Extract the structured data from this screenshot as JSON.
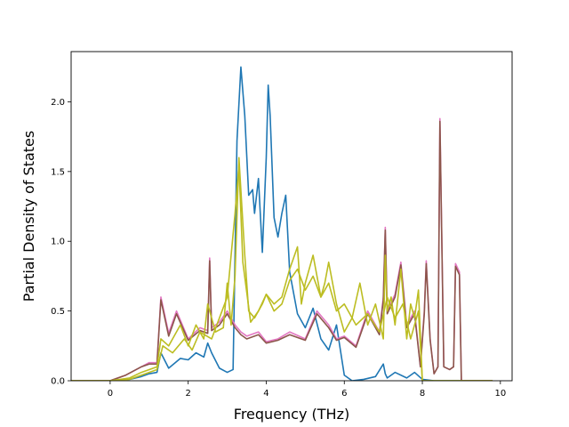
{
  "chart_data": {
    "type": "line",
    "title": "",
    "xlabel": "Frequency (THz)",
    "ylabel": "Partial Density of States",
    "xlim": [
      -1.0,
      10.3
    ],
    "ylim": [
      0.0,
      2.36
    ],
    "xticks": [
      0,
      2,
      4,
      6,
      8,
      10
    ],
    "yticks": [
      0.0,
      0.5,
      1.0,
      1.5,
      2.0
    ],
    "xtick_labels": [
      "0",
      "2",
      "4",
      "6",
      "8",
      "10"
    ],
    "ytick_labels": [
      "0.0",
      "0.5",
      "1.0",
      "1.5",
      "2.0"
    ],
    "grid": false,
    "legend": "none",
    "series": [
      {
        "color": "#1f77b4",
        "x": [
          -1.0,
          0.0,
          0.5,
          0.8,
          1.0,
          1.2,
          1.3,
          1.5,
          1.8,
          2.0,
          2.2,
          2.4,
          2.5,
          2.6,
          2.8,
          3.0,
          3.15,
          3.25,
          3.35,
          3.45,
          3.55,
          3.65,
          3.7,
          3.8,
          3.9,
          4.0,
          4.05,
          4.1,
          4.2,
          4.3,
          4.4,
          4.5,
          4.6,
          4.8,
          5.0,
          5.2,
          5.4,
          5.6,
          5.8,
          6.0,
          6.2,
          6.5,
          6.8,
          7.0,
          7.05,
          7.1,
          7.3,
          7.6,
          7.8,
          8.0,
          8.3,
          8.4,
          8.5,
          9.0,
          9.8
        ],
        "y": [
          0.0,
          0.0,
          0.01,
          0.03,
          0.05,
          0.06,
          0.2,
          0.09,
          0.16,
          0.15,
          0.2,
          0.17,
          0.27,
          0.2,
          0.09,
          0.06,
          0.08,
          1.72,
          2.25,
          1.9,
          1.33,
          1.37,
          1.2,
          1.45,
          0.92,
          1.6,
          2.12,
          1.9,
          1.17,
          1.03,
          1.2,
          1.33,
          0.78,
          0.48,
          0.38,
          0.52,
          0.3,
          0.22,
          0.4,
          0.04,
          0.0,
          0.01,
          0.03,
          0.12,
          0.05,
          0.02,
          0.06,
          0.02,
          0.06,
          0.01,
          0.0,
          0.0,
          0.0,
          0.0,
          0.0
        ]
      },
      {
        "color": "#e377c2",
        "x": [
          -1.0,
          0.0,
          0.4,
          0.8,
          1.0,
          1.2,
          1.3,
          1.5,
          1.7,
          2.0,
          2.3,
          2.5,
          2.55,
          2.6,
          2.8,
          3.0,
          3.2,
          3.35,
          3.5,
          3.8,
          4.0,
          4.3,
          4.6,
          5.0,
          5.3,
          5.6,
          5.8,
          6.0,
          6.3,
          6.6,
          6.9,
          7.0,
          7.05,
          7.1,
          7.3,
          7.45,
          7.6,
          7.8,
          7.95,
          8.05,
          8.1,
          8.2,
          8.3,
          8.4,
          8.45,
          8.55,
          8.7,
          8.8,
          8.85,
          8.95,
          9.0,
          9.8
        ],
        "y": [
          0.0,
          0.0,
          0.04,
          0.1,
          0.13,
          0.13,
          0.6,
          0.34,
          0.5,
          0.3,
          0.38,
          0.36,
          0.88,
          0.38,
          0.42,
          0.5,
          0.4,
          0.35,
          0.32,
          0.35,
          0.28,
          0.3,
          0.35,
          0.3,
          0.5,
          0.4,
          0.3,
          0.32,
          0.25,
          0.5,
          0.35,
          0.6,
          1.1,
          0.5,
          0.62,
          0.85,
          0.4,
          0.5,
          0.1,
          0.5,
          0.86,
          0.3,
          0.05,
          0.1,
          1.88,
          0.1,
          0.08,
          0.1,
          0.84,
          0.78,
          0.0,
          0.0
        ]
      },
      {
        "color": "#8c564b",
        "x": [
          -1.0,
          0.0,
          0.4,
          0.8,
          1.0,
          1.2,
          1.3,
          1.5,
          1.7,
          2.0,
          2.3,
          2.5,
          2.55,
          2.6,
          2.8,
          3.0,
          3.2,
          3.35,
          3.5,
          3.8,
          4.0,
          4.3,
          4.6,
          5.0,
          5.3,
          5.6,
          5.8,
          6.0,
          6.3,
          6.6,
          6.9,
          7.0,
          7.05,
          7.1,
          7.3,
          7.45,
          7.6,
          7.8,
          7.95,
          8.05,
          8.1,
          8.2,
          8.3,
          8.4,
          8.45,
          8.55,
          8.7,
          8.8,
          8.85,
          8.95,
          9.0,
          9.8
        ],
        "y": [
          0.0,
          0.0,
          0.04,
          0.1,
          0.12,
          0.12,
          0.58,
          0.32,
          0.48,
          0.29,
          0.36,
          0.34,
          0.86,
          0.36,
          0.4,
          0.48,
          0.38,
          0.33,
          0.3,
          0.33,
          0.27,
          0.29,
          0.33,
          0.29,
          0.48,
          0.38,
          0.29,
          0.31,
          0.24,
          0.48,
          0.33,
          0.58,
          1.08,
          0.48,
          0.6,
          0.83,
          0.38,
          0.48,
          0.1,
          0.48,
          0.84,
          0.29,
          0.05,
          0.1,
          1.86,
          0.1,
          0.08,
          0.1,
          0.82,
          0.76,
          0.0,
          0.0
        ]
      },
      {
        "color": "#bcbd22",
        "x": [
          -1.0,
          0.0,
          0.5,
          0.8,
          1.0,
          1.2,
          1.3,
          1.5,
          1.8,
          2.0,
          2.2,
          2.4,
          2.5,
          2.7,
          2.9,
          3.0,
          3.1,
          3.2,
          3.3,
          3.45,
          3.55,
          3.7,
          3.9,
          4.0,
          4.2,
          4.4,
          4.6,
          4.8,
          4.9,
          5.0,
          5.2,
          5.4,
          5.5,
          5.6,
          5.8,
          6.0,
          6.2,
          6.4,
          6.6,
          6.8,
          7.0,
          7.05,
          7.1,
          7.2,
          7.3,
          7.45,
          7.6,
          7.7,
          7.8,
          7.9,
          8.0,
          8.2,
          9.0,
          9.8
        ],
        "y": [
          0.0,
          0.0,
          0.02,
          0.06,
          0.08,
          0.1,
          0.3,
          0.25,
          0.4,
          0.25,
          0.4,
          0.3,
          0.55,
          0.35,
          0.38,
          0.7,
          0.4,
          0.75,
          1.6,
          0.9,
          0.5,
          0.45,
          0.55,
          0.62,
          0.55,
          0.6,
          0.8,
          0.96,
          0.55,
          0.7,
          0.9,
          0.6,
          0.7,
          0.85,
          0.55,
          0.35,
          0.45,
          0.7,
          0.4,
          0.55,
          0.3,
          0.9,
          0.5,
          0.6,
          0.4,
          0.8,
          0.3,
          0.55,
          0.45,
          0.65,
          0.0,
          0.0,
          0.0,
          0.0
        ]
      },
      {
        "color": "#bcbd22",
        "x": [
          -1.0,
          0.0,
          0.5,
          0.8,
          1.0,
          1.2,
          1.35,
          1.6,
          1.9,
          2.1,
          2.3,
          2.6,
          2.8,
          3.0,
          3.2,
          3.3,
          3.4,
          3.6,
          3.8,
          4.0,
          4.2,
          4.4,
          4.6,
          4.8,
          5.0,
          5.2,
          5.4,
          5.6,
          5.8,
          6.0,
          6.3,
          6.6,
          6.9,
          7.1,
          7.3,
          7.5,
          7.7,
          7.9,
          8.0,
          8.2,
          9.8
        ],
        "y": [
          0.0,
          0.0,
          0.01,
          0.04,
          0.06,
          0.08,
          0.25,
          0.2,
          0.3,
          0.22,
          0.35,
          0.3,
          0.45,
          0.6,
          1.2,
          1.55,
          0.85,
          0.42,
          0.5,
          0.62,
          0.5,
          0.55,
          0.72,
          0.8,
          0.65,
          0.75,
          0.6,
          0.7,
          0.5,
          0.55,
          0.4,
          0.48,
          0.35,
          0.6,
          0.45,
          0.55,
          0.3,
          0.5,
          0.0,
          0.0,
          0.0
        ]
      }
    ]
  }
}
